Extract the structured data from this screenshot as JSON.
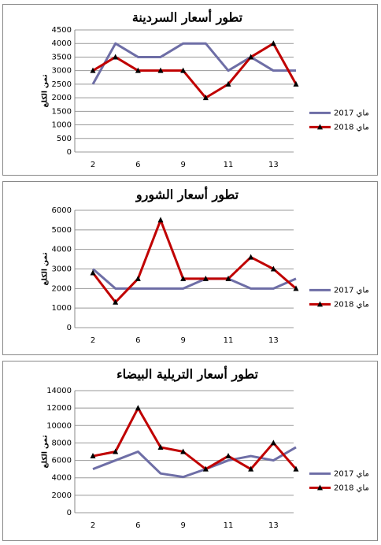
{
  "chart_data": [
    {
      "type": "line",
      "title": "تطور أسعار السردينة",
      "y_label": "ثمن الكلغ",
      "categories": [
        "2",
        null,
        "6",
        null,
        "9",
        null,
        "11",
        null,
        "13",
        null
      ],
      "series": [
        {
          "name": "ماي 2017",
          "color": "#6e6ea6",
          "values": [
            2500,
            4000,
            3500,
            3500,
            4000,
            4000,
            3000,
            3500,
            3000,
            3000
          ]
        },
        {
          "name": "ماي 2018",
          "color": "#c00000",
          "marker": "triangle",
          "values": [
            3000,
            3500,
            3000,
            3000,
            3000,
            2000,
            2500,
            3500,
            4000,
            2500
          ]
        }
      ],
      "ylim": [
        0,
        4500
      ],
      "yticks": [
        0,
        500,
        1000,
        1500,
        2000,
        2500,
        3000,
        3500,
        4000,
        4500
      ],
      "grid": true,
      "legend": "right"
    },
    {
      "type": "line",
      "title": "تطور أسعار الشورو",
      "y_label": "ثمن الكلغ",
      "categories": [
        "2",
        null,
        "6",
        null,
        "9",
        null,
        "11",
        null,
        "13",
        null
      ],
      "series": [
        {
          "name": "ماي 2017",
          "color": "#6e6ea6",
          "values": [
            3000,
            2000,
            2000,
            2000,
            2000,
            2500,
            2500,
            2000,
            2000,
            2500
          ]
        },
        {
          "name": "ماي 2018",
          "color": "#c00000",
          "marker": "triangle",
          "values": [
            2800,
            1300,
            2500,
            5500,
            2500,
            2500,
            2500,
            3600,
            3000,
            2000
          ]
        }
      ],
      "ylim": [
        0,
        6000
      ],
      "yticks": [
        0,
        1000,
        2000,
        3000,
        4000,
        5000,
        6000
      ],
      "grid": true,
      "legend": "right"
    },
    {
      "type": "line",
      "title": "تطور أسعار التريلية البيضاء",
      "y_label": "ثمن الكلغ",
      "categories": [
        "2",
        null,
        "6",
        null,
        "9",
        null,
        "11",
        null,
        "13",
        null
      ],
      "series": [
        {
          "name": "ماي 2017",
          "color": "#6e6ea6",
          "values": [
            5000,
            6000,
            7000,
            4500,
            4100,
            5000,
            6000,
            6500,
            6000,
            7500
          ]
        },
        {
          "name": "ماي 2018",
          "color": "#c00000",
          "marker": "triangle",
          "values": [
            6500,
            7000,
            12000,
            7500,
            7000,
            5000,
            6500,
            5000,
            8000,
            5000
          ]
        }
      ],
      "ylim": [
        0,
        14000
      ],
      "yticks": [
        0,
        2000,
        4000,
        6000,
        8000,
        10000,
        12000,
        14000
      ],
      "grid": true,
      "legend": "right"
    }
  ]
}
